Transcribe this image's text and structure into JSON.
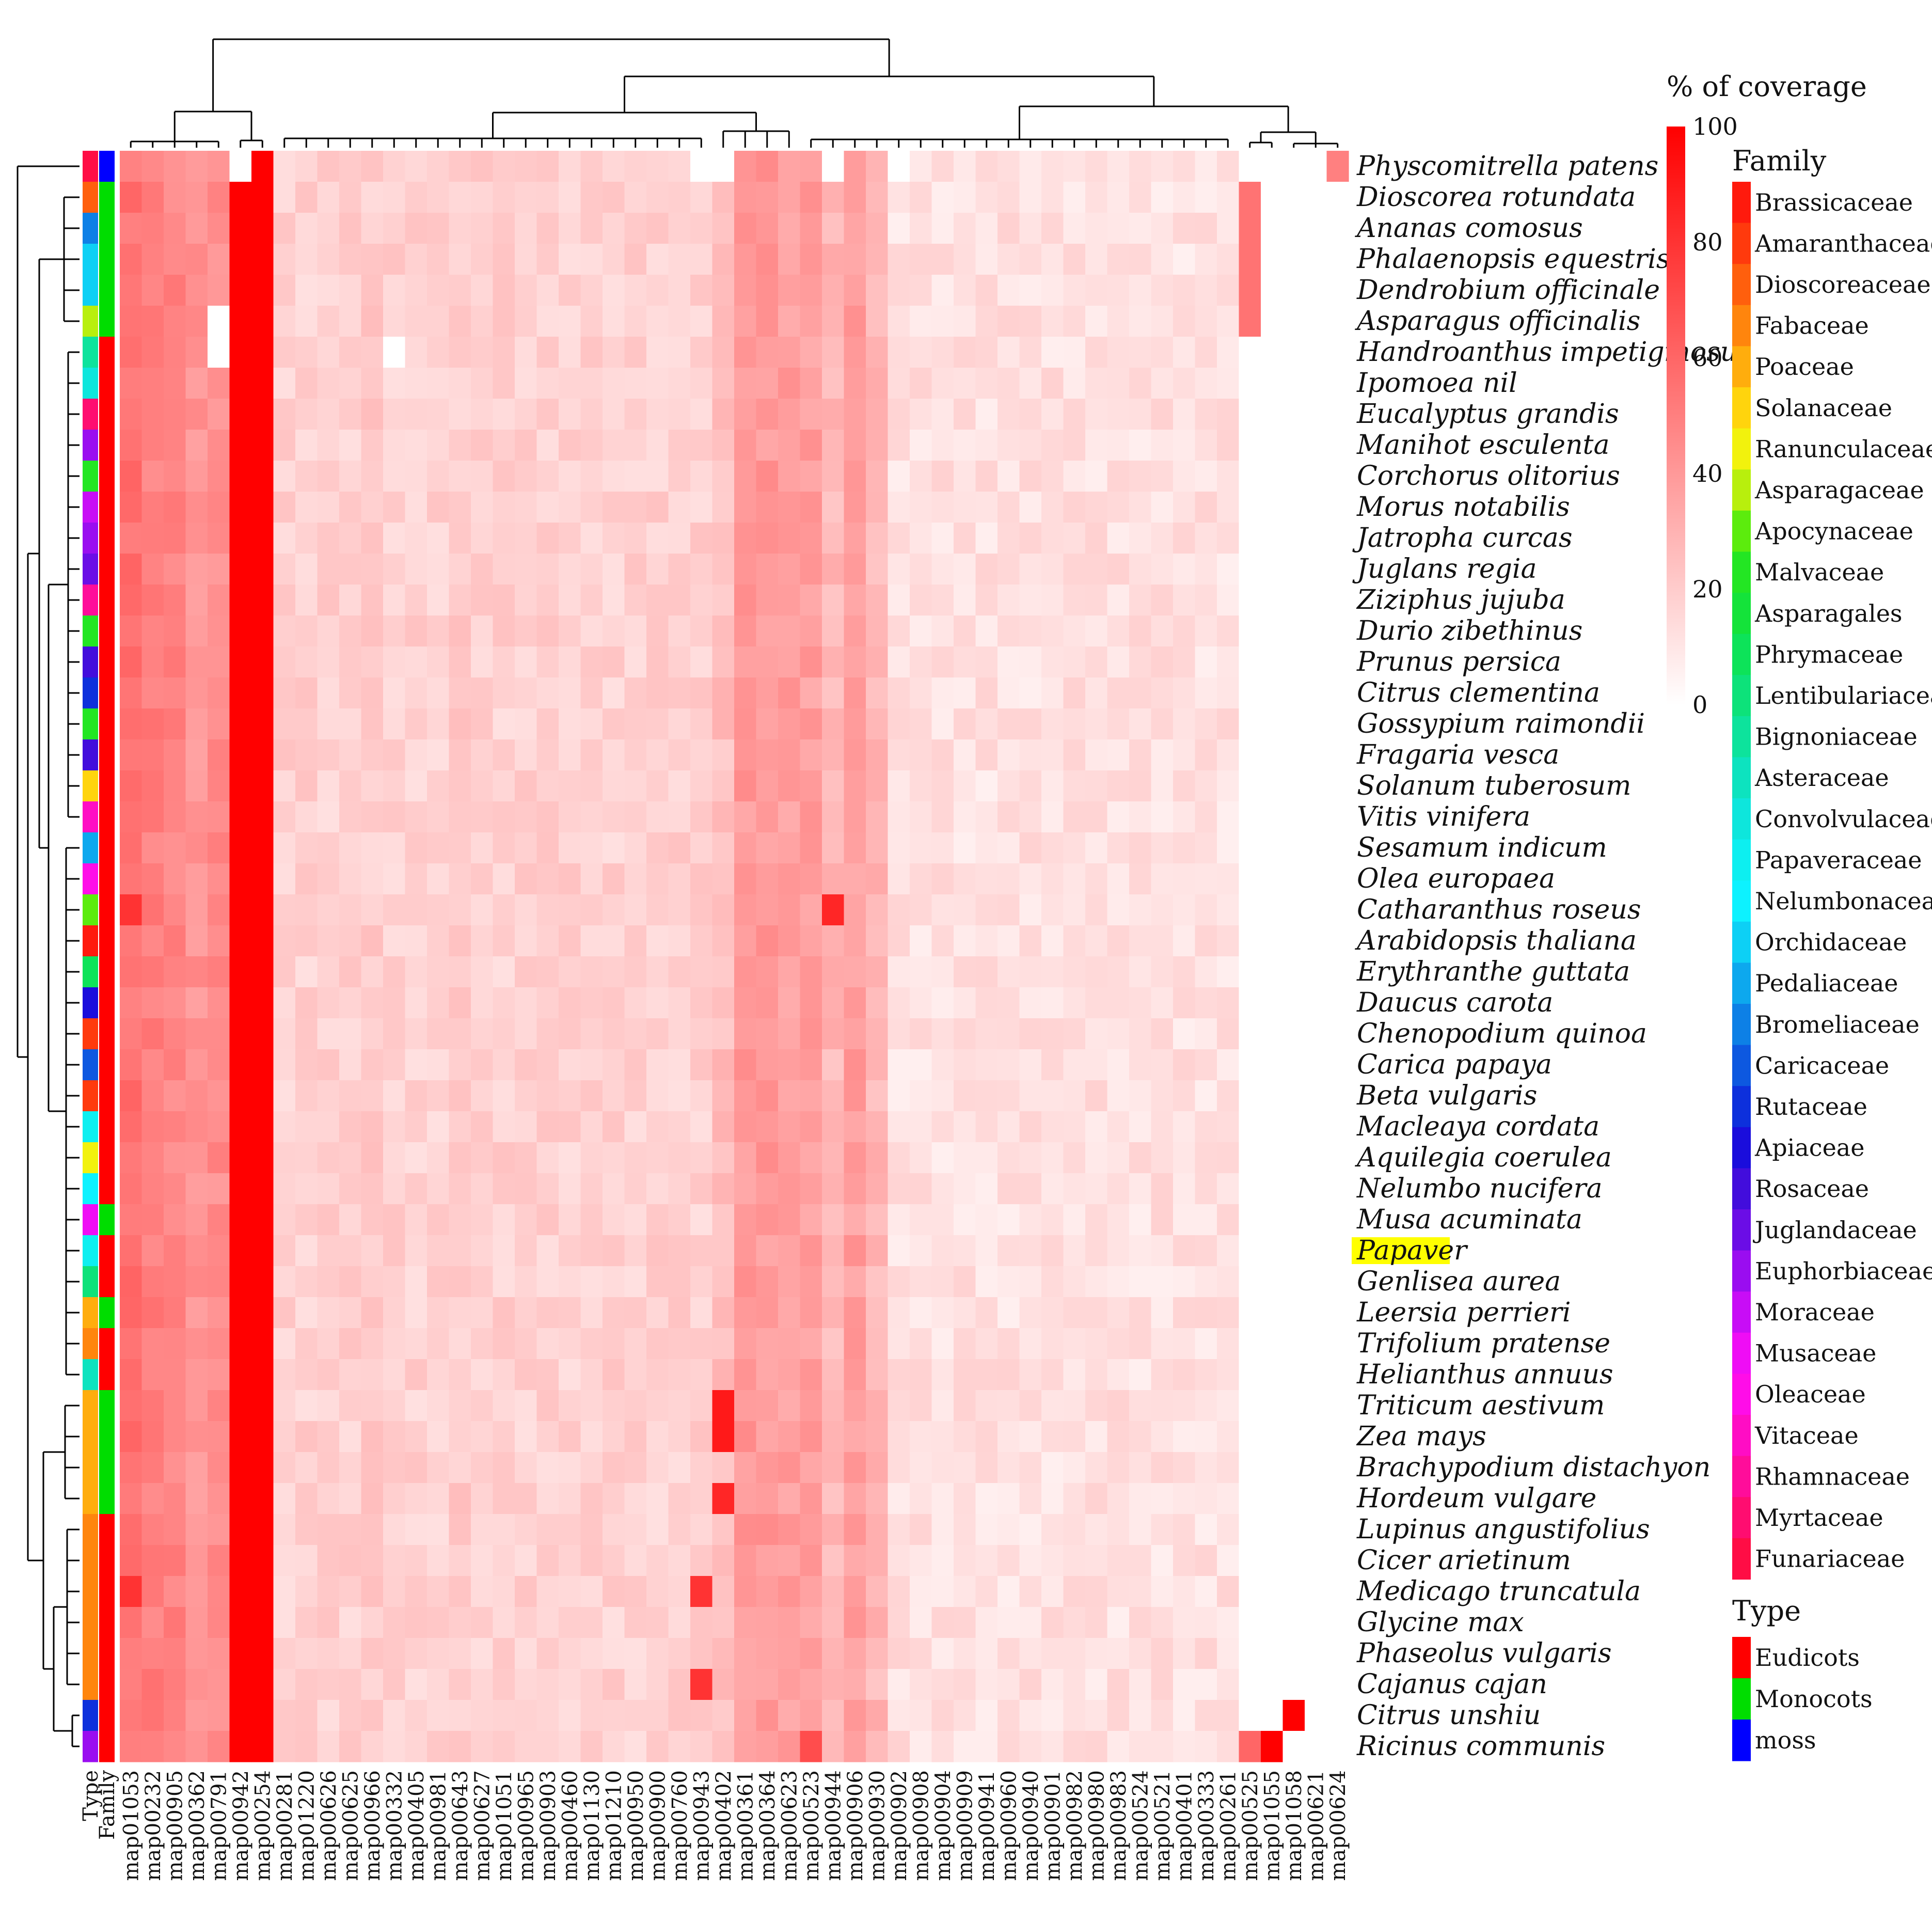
{
  "chart_data": {
    "type": "heatmap",
    "title": "",
    "legend_title": "% of coverage",
    "scale": {
      "min": 0,
      "max": 100,
      "ticks": [
        0,
        20,
        40,
        60,
        80,
        100
      ],
      "low_color": "#ffffff",
      "high_color": "#ff0000"
    },
    "highlight_row": "Papaver",
    "highlight_color": "#ffff00",
    "annotation_column_labels": [
      "Type",
      "Family"
    ],
    "columns": [
      "map01053",
      "map00232",
      "map00905",
      "map00362",
      "map00791",
      "map00942",
      "map00254",
      "map00281",
      "map01220",
      "map00626",
      "map00625",
      "map00966",
      "map00332",
      "map00405",
      "map00981",
      "map00643",
      "map00627",
      "map01051",
      "map00965",
      "map00903",
      "map00460",
      "map01130",
      "map01210",
      "map00950",
      "map00900",
      "map00760",
      "map00943",
      "map00402",
      "map00361",
      "map00364",
      "map00623",
      "map00523",
      "map00944",
      "map00906",
      "map00930",
      "map00902",
      "map00908",
      "map00904",
      "map00909",
      "map00941",
      "map00960",
      "map00940",
      "map00901",
      "map00982",
      "map00980",
      "map00983",
      "map00524",
      "map00521",
      "map00401",
      "map00333",
      "map00261",
      "map00525",
      "map01055",
      "map01058",
      "map00621",
      "map00624"
    ],
    "rows": [
      "Physcomitrella patens",
      "Dioscorea rotundata",
      "Ananas comosus",
      "Phalaenopsis equestris",
      "Dendrobium officinale",
      "Asparagus officinalis",
      "Handroanthus impetiginosus",
      "Ipomoea nil",
      "Eucalyptus grandis",
      "Manihot esculenta",
      "Corchorus olitorius",
      "Morus notabilis",
      "Jatropha curcas",
      "Juglans regia",
      "Ziziphus jujuba",
      "Durio zibethinus",
      "Prunus persica",
      "Citrus clementina",
      "Gossypium raimondii",
      "Fragaria vesca",
      "Solanum tuberosum",
      "Vitis vinifera",
      "Sesamum indicum",
      "Olea europaea",
      "Catharanthus roseus",
      "Arabidopsis thaliana",
      "Erythranthe guttata",
      "Daucus carota",
      "Chenopodium quinoa",
      "Carica papaya",
      "Beta vulgaris",
      "Macleaya cordata",
      "Aquilegia coerulea",
      "Nelumbo nucifera",
      "Musa acuminata",
      "Papaver",
      "Genlisea aurea",
      "Leersia perrieri",
      "Trifolium pratense",
      "Helianthus annuus",
      "Triticum aestivum",
      "Zea mays",
      "Brachypodium distachyon",
      "Hordeum vulgare",
      "Lupinus angustifolius",
      "Cicer arietinum",
      "Medicago truncatula",
      "Glycine max",
      "Phaseolus vulgaris",
      "Cajanus cajan",
      "Citrus unshiu",
      "Ricinus communis"
    ],
    "column_profile": [
      55,
      50,
      48,
      42,
      45,
      100,
      100,
      18,
      18,
      18,
      18,
      20,
      18,
      18,
      18,
      20,
      18,
      18,
      18,
      18,
      18,
      18,
      18,
      18,
      18,
      18,
      18,
      25,
      40,
      40,
      38,
      38,
      28,
      38,
      28,
      12,
      12,
      12,
      12,
      12,
      12,
      12,
      12,
      12,
      12,
      12,
      12,
      12,
      12,
      12,
      12,
      0,
      0,
      0,
      0,
      0
    ],
    "special_cells": [
      {
        "row": "Physcomitrella patens",
        "column": "map00624",
        "value": 50
      },
      {
        "row": "Physcomitrella patens",
        "column": "map00942",
        "value": 0
      },
      {
        "row": "Physcomitrella patens",
        "column": "map00943",
        "value": 0
      },
      {
        "row": "Physcomitrella patens",
        "column": "map00402",
        "value": 0
      },
      {
        "row": "Physcomitrella patens",
        "column": "map00944",
        "value": 0
      },
      {
        "row": "Physcomitrella patens",
        "column": "map00902",
        "value": 0
      },
      {
        "row": "Dioscorea rotundata",
        "column": "map00525",
        "value": 55
      },
      {
        "row": "Ananas comosus",
        "column": "map00525",
        "value": 55
      },
      {
        "row": "Phalaenopsis equestris",
        "column": "map00525",
        "value": 55
      },
      {
        "row": "Dendrobium officinale",
        "column": "map00525",
        "value": 55
      },
      {
        "row": "Asparagus officinalis",
        "column": "map00525",
        "value": 55
      },
      {
        "row": "Asparagus officinalis",
        "column": "map00791",
        "value": 0
      },
      {
        "row": "Handroanthus impetiginosus",
        "column": "map00791",
        "value": 0
      },
      {
        "row": "Handroanthus impetiginosus",
        "column": "map00332",
        "value": 0
      },
      {
        "row": "Catharanthus roseus",
        "column": "map01053",
        "value": 80
      },
      {
        "row": "Catharanthus roseus",
        "column": "map00944",
        "value": 85
      },
      {
        "row": "Triticum aestivum",
        "column": "map00402",
        "value": 90
      },
      {
        "row": "Zea mays",
        "column": "map00402",
        "value": 90
      },
      {
        "row": "Hordeum vulgare",
        "column": "map00402",
        "value": 85
      },
      {
        "row": "Medicago truncatula",
        "column": "map01053",
        "value": 80
      },
      {
        "row": "Medicago truncatula",
        "column": "map00943",
        "value": 80
      },
      {
        "row": "Cajanus cajan",
        "column": "map00943",
        "value": 80
      },
      {
        "row": "Citrus unshiu",
        "column": "map01058",
        "value": 100
      },
      {
        "row": "Ricinus communis",
        "column": "map01055",
        "value": 100
      },
      {
        "row": "Ricinus communis",
        "column": "map00525",
        "value": 60
      },
      {
        "row": "Ricinus communis",
        "column": "map00523",
        "value": 70
      }
    ],
    "row_family": [
      "Funariaceae",
      "Dioscoreaceae",
      "Bromeliaceae",
      "Orchidaceae",
      "Orchidaceae",
      "Asparagaceae",
      "Bignoniaceae",
      "Convolvulaceae",
      "Myrtaceae",
      "Euphorbiaceae",
      "Malvaceae",
      "Moraceae",
      "Euphorbiaceae",
      "Juglandaceae",
      "Rhamnaceae",
      "Malvaceae",
      "Rosaceae",
      "Rutaceae",
      "Malvaceae",
      "Rosaceae",
      "Solanaceae",
      "Vitaceae",
      "Pedaliaceae",
      "Oleaceae",
      "Apocynaceae",
      "Brassicaceae",
      "Phrymaceae",
      "Apiaceae",
      "Amaranthaceae",
      "Caricaceae",
      "Amaranthaceae",
      "Papaveraceae",
      "Ranunculaceae",
      "Nelumbonaceae",
      "Musaceae",
      "Papaveraceae",
      "Lentibulariaceae",
      "Poaceae",
      "Fabaceae",
      "Asteraceae",
      "Poaceae",
      "Poaceae",
      "Poaceae",
      "Poaceae",
      "Fabaceae",
      "Fabaceae",
      "Fabaceae",
      "Fabaceae",
      "Fabaceae",
      "Fabaceae",
      "Rutaceae",
      "Euphorbiaceae"
    ],
    "row_type": [
      "moss",
      "Monocots",
      "Monocots",
      "Monocots",
      "Monocots",
      "Monocots",
      "Eudicots",
      "Eudicots",
      "Eudicots",
      "Eudicots",
      "Eudicots",
      "Eudicots",
      "Eudicots",
      "Eudicots",
      "Eudicots",
      "Eudicots",
      "Eudicots",
      "Eudicots",
      "Eudicots",
      "Eudicots",
      "Eudicots",
      "Eudicots",
      "Eudicots",
      "Eudicots",
      "Eudicots",
      "Eudicots",
      "Eudicots",
      "Eudicots",
      "Eudicots",
      "Eudicots",
      "Eudicots",
      "Eudicots",
      "Eudicots",
      "Eudicots",
      "Monocots",
      "Eudicots",
      "Eudicots",
      "Monocots",
      "Eudicots",
      "Eudicots",
      "Monocots",
      "Monocots",
      "Monocots",
      "Monocots",
      "Eudicots",
      "Eudicots",
      "Eudicots",
      "Eudicots",
      "Eudicots",
      "Eudicots",
      "Eudicots",
      "Eudicots"
    ],
    "family_legend_title": "Family",
    "family_legend": [
      {
        "name": "Brassicaceae",
        "color": "#ff1a0d"
      },
      {
        "name": "Amaranthaceae",
        "color": "#ff3a0d"
      },
      {
        "name": "Dioscoreaceae",
        "color": "#ff5f0d"
      },
      {
        "name": "Fabaceae",
        "color": "#ff850d"
      },
      {
        "name": "Poaceae",
        "color": "#ffad0d"
      },
      {
        "name": "Solanaceae",
        "color": "#ffd40d"
      },
      {
        "name": "Ranunculaceae",
        "color": "#f2f20d"
      },
      {
        "name": "Asparagaceae",
        "color": "#b8ef0d"
      },
      {
        "name": "Apocynaceae",
        "color": "#5cec0d"
      },
      {
        "name": "Malvaceae",
        "color": "#23e623"
      },
      {
        "name": "Asparagales",
        "color": "#14e33a"
      },
      {
        "name": "Phrymaceae",
        "color": "#0de359"
      },
      {
        "name": "Lentibulariaceae",
        "color": "#0de27a"
      },
      {
        "name": "Bignoniaceae",
        "color": "#0de39c"
      },
      {
        "name": "Asteraceae",
        "color": "#0de3bf"
      },
      {
        "name": "Convolvulaceae",
        "color": "#0ee6dc"
      },
      {
        "name": "Papaveraceae",
        "color": "#0deff0"
      },
      {
        "name": "Nelumbonaceae",
        "color": "#0df2ff"
      },
      {
        "name": "Orchidaceae",
        "color": "#0dd0f5"
      },
      {
        "name": "Pedaliaceae",
        "color": "#0da8ee"
      },
      {
        "name": "Bromeliaceae",
        "color": "#0d80e6"
      },
      {
        "name": "Caricaceae",
        "color": "#0d58e0"
      },
      {
        "name": "Rutaceae",
        "color": "#0d30dc"
      },
      {
        "name": "Apiaceae",
        "color": "#1a0ddc"
      },
      {
        "name": "Rosaceae",
        "color": "#420ddc"
      },
      {
        "name": "Juglandaceae",
        "color": "#6b0de6"
      },
      {
        "name": "Euphorbiaceae",
        "color": "#9a0df0"
      },
      {
        "name": "Moraceae",
        "color": "#c80df6"
      },
      {
        "name": "Musaceae",
        "color": "#ef0df5"
      },
      {
        "name": "Oleaceae",
        "color": "#ff0de8"
      },
      {
        "name": "Vitaceae",
        "color": "#ff0dc4"
      },
      {
        "name": "Rhamnaceae",
        "color": "#ff0d9a"
      },
      {
        "name": "Myrtaceae",
        "color": "#ff0d70"
      },
      {
        "name": "Funariaceae",
        "color": "#ff0d45"
      }
    ],
    "type_legend_title": "Type",
    "type_legend": [
      {
        "name": "Eudicots",
        "color": "#ff0000"
      },
      {
        "name": "Monocots",
        "color": "#00dd00"
      },
      {
        "name": "moss",
        "color": "#0000ff"
      }
    ]
  }
}
